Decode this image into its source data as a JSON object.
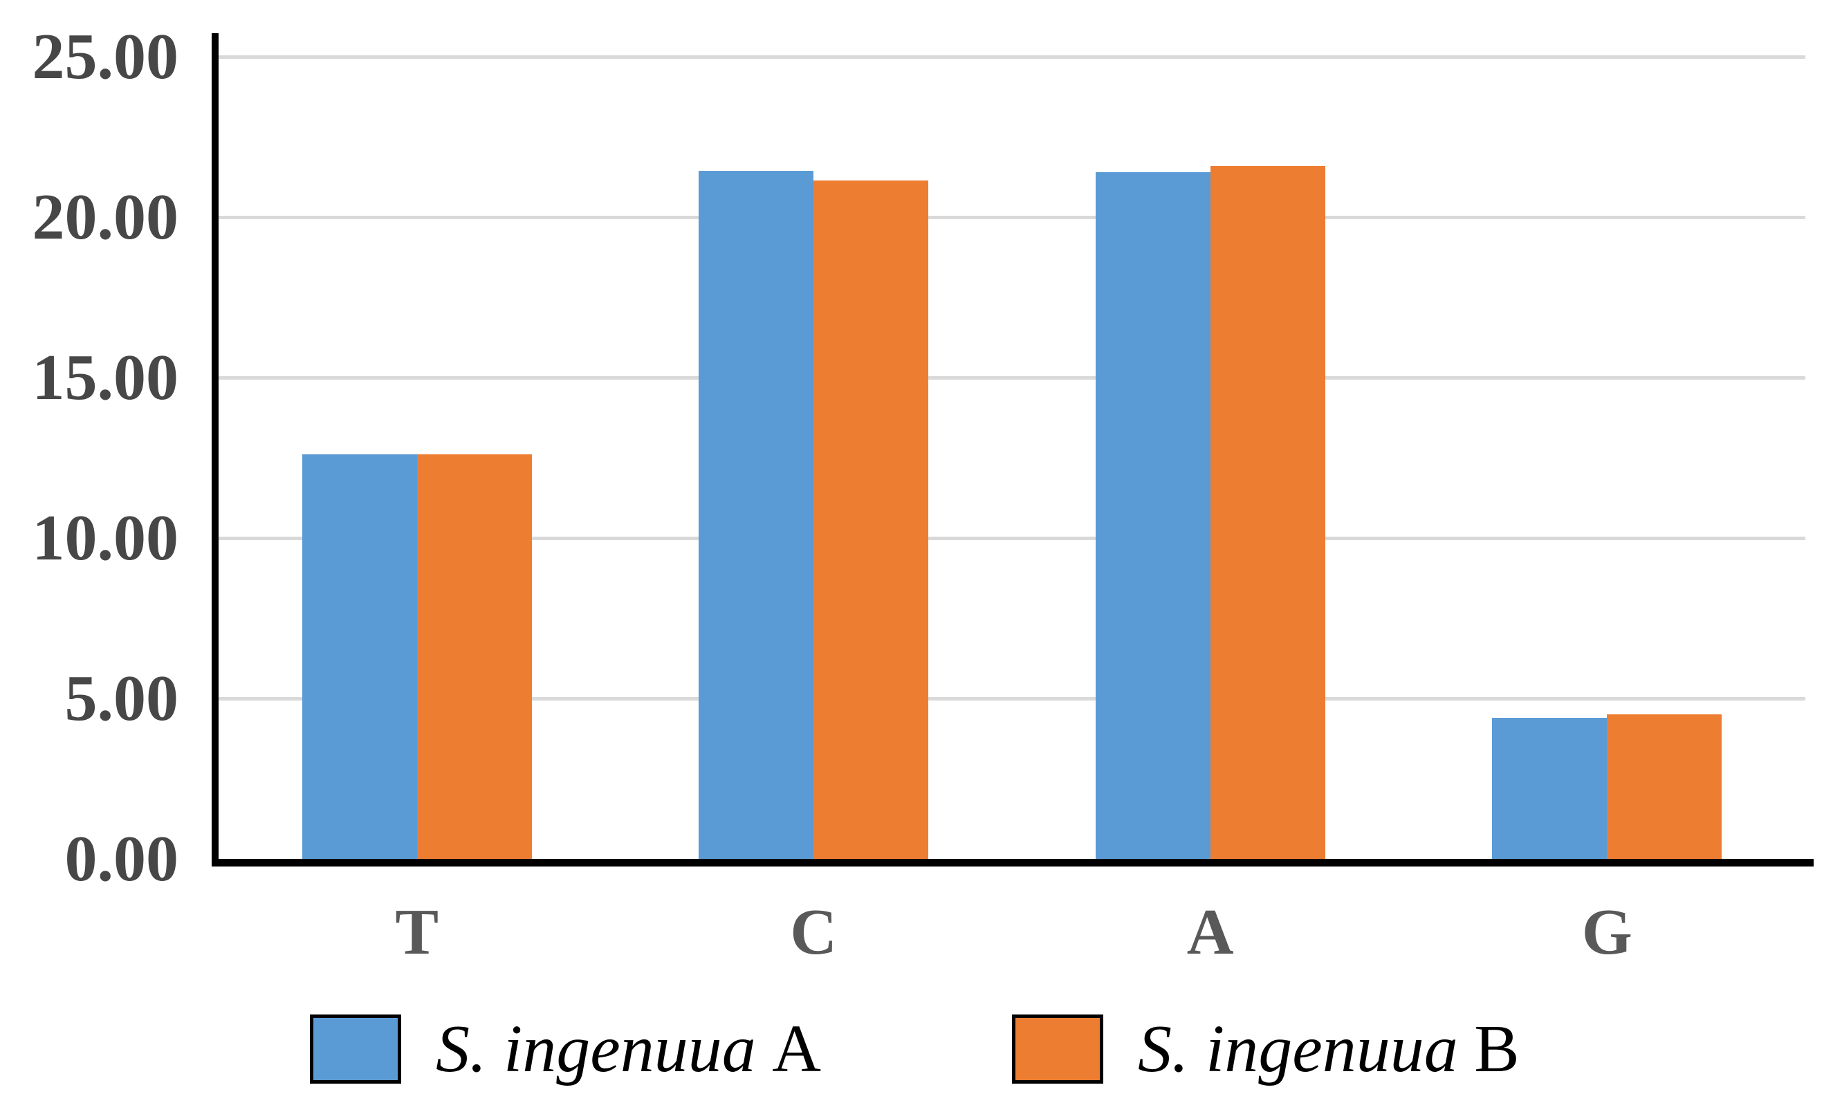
{
  "chart_data": {
    "type": "bar",
    "title": "",
    "xlabel": "",
    "ylabel": "",
    "categories": [
      "T",
      "C",
      "A",
      "G"
    ],
    "series": [
      {
        "name": "S. ingenuua A",
        "name_italic": "S. ingenuua",
        "name_suffix": "A",
        "color": "#5B9BD5",
        "values": [
          12.6,
          21.45,
          21.4,
          4.4
        ]
      },
      {
        "name": "S. ingenuua B",
        "name_italic": "S. ingenuua",
        "name_suffix": "B",
        "color": "#ED7D31",
        "values": [
          12.6,
          21.15,
          21.6,
          4.5
        ]
      }
    ],
    "ylim": [
      0,
      25
    ],
    "yticks": [
      0,
      5,
      10,
      15,
      20,
      25
    ],
    "ytick_labels": [
      "0.00",
      "5.00",
      "10.00",
      "15.00",
      "20.00",
      "25.00"
    ],
    "grid": true,
    "gridline_color": "#D9D9D9",
    "axis_color": "#000000",
    "tick_label_color": "#595959",
    "legend_position": "bottom"
  }
}
